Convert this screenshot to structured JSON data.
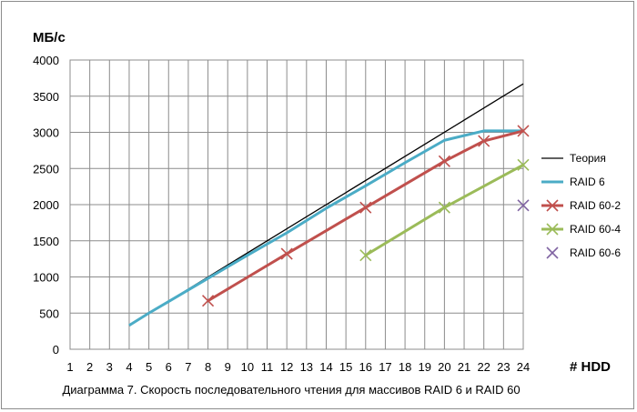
{
  "chart_data": {
    "type": "line",
    "caption": "Диаграмма 7. Скорость последовательного чтения для массивов RAID 6 и RAID 60",
    "ylabel": "МБ/с",
    "xlabel": "# HDD",
    "xlim": [
      1,
      24
    ],
    "ylim": [
      0,
      4000
    ],
    "x_ticks": [
      1,
      2,
      3,
      4,
      5,
      6,
      7,
      8,
      9,
      10,
      11,
      12,
      13,
      14,
      15,
      16,
      17,
      18,
      19,
      20,
      21,
      22,
      23,
      24
    ],
    "y_ticks": [
      0,
      500,
      1000,
      1500,
      2000,
      2500,
      3000,
      3500,
      4000
    ],
    "grid": true,
    "legend_position": "right",
    "series": [
      {
        "name": "Теория",
        "color": "#000000",
        "style": "line",
        "marker": "none",
        "points": [
          [
            4,
            330
          ],
          [
            24,
            3670
          ]
        ]
      },
      {
        "name": "RAID 6",
        "color": "#4bacc6",
        "style": "line",
        "marker": "none",
        "points": [
          [
            4,
            330
          ],
          [
            5,
            500
          ],
          [
            6,
            660
          ],
          [
            7,
            820
          ],
          [
            8,
            980
          ],
          [
            10,
            1300
          ],
          [
            12,
            1610
          ],
          [
            14,
            1950
          ],
          [
            16,
            2260
          ],
          [
            18,
            2580
          ],
          [
            20,
            2890
          ],
          [
            22,
            3020
          ],
          [
            24,
            3020
          ]
        ]
      },
      {
        "name": "RAID 60-2",
        "color": "#c0504d",
        "style": "line",
        "marker": "x",
        "points": [
          [
            8,
            670
          ],
          [
            12,
            1320
          ],
          [
            16,
            1960
          ],
          [
            20,
            2600
          ],
          [
            22,
            2880
          ],
          [
            24,
            3020
          ]
        ]
      },
      {
        "name": "RAID 60-4",
        "color": "#9bbb59",
        "style": "line",
        "marker": "x",
        "points": [
          [
            16,
            1300
          ],
          [
            20,
            1960
          ],
          [
            24,
            2550
          ]
        ]
      },
      {
        "name": "RAID 60-6",
        "color": "#8064a2",
        "style": "marker",
        "marker": "x",
        "points": [
          [
            24,
            1990
          ]
        ]
      }
    ]
  }
}
